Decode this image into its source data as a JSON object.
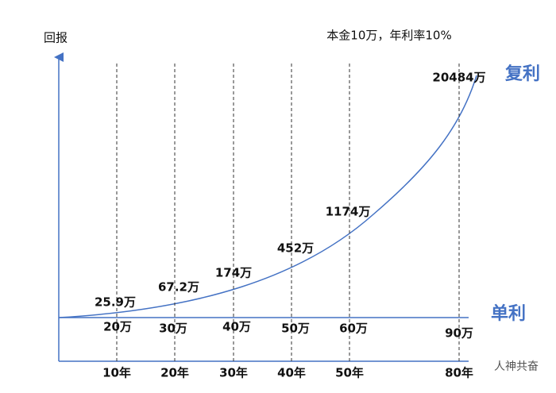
{
  "y_label": "回报",
  "note": "本金10万，年利率10%",
  "compound": {
    "label": "复利",
    "values": [
      "25.9万",
      "67.2万",
      "174万",
      "452万",
      "1174万",
      "20484万"
    ]
  },
  "simple": {
    "label": "单利",
    "values": [
      "20万",
      "30万",
      "40万",
      "50万",
      "60万",
      "90万"
    ]
  },
  "years": [
    "10年",
    "20年",
    "30年",
    "40年",
    "50年",
    "80年"
  ],
  "watermark": "人神共奋"
}
